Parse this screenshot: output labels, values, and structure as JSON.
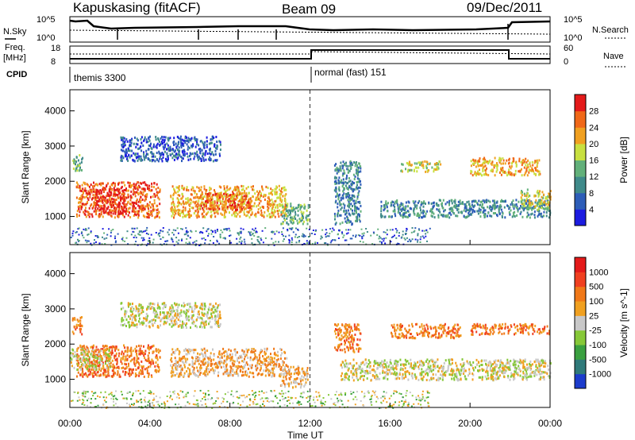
{
  "header": {
    "station": "Kapuskasing (fitACF)",
    "beam": "Beam 09",
    "date": "09/Dec/2011"
  },
  "top_panels": {
    "nsky_label": "N.Sky",
    "nsky_ticks": [
      "10^5",
      "10^0"
    ],
    "nsearch_label": "N.Search",
    "freq_label": "Freq.",
    "freq_unit": "[MHz]",
    "freq_ticks": [
      "18",
      "8"
    ],
    "nave_label": "Nave",
    "nave_ticks": [
      "60",
      "0"
    ],
    "cpid_label": "CPID",
    "cpid_segments": [
      {
        "label": "themis 3300",
        "start_hour": 0,
        "end_hour": 12
      },
      {
        "label": "normal (fast) 151",
        "start_hour": 12,
        "end_hour": 24
      }
    ]
  },
  "chart_data": [
    {
      "type": "heatmap",
      "title": "",
      "xlabel": "Time UT",
      "ylabel": "Slant Range [km]",
      "xlim": [
        0,
        24
      ],
      "ylim": [
        200,
        4600
      ],
      "x_ticks": [
        "00:00",
        "04:00",
        "08:00",
        "12:00",
        "16:00",
        "20:00",
        "00:00"
      ],
      "y_ticks": [
        "1000",
        "2000",
        "3000",
        "4000"
      ],
      "colorbar": {
        "label": "Power [dB]",
        "ticks": [
          "4",
          "8",
          "12",
          "16",
          "20",
          "24",
          "28"
        ],
        "colors": [
          "#1c1ce0",
          "#2d5db8",
          "#3f8a8a",
          "#62b07a",
          "#c8e040",
          "#f0a020",
          "#f06818",
          "#e41a1a"
        ]
      },
      "echo_regions": [
        {
          "t_start": 0.1,
          "t_end": 0.6,
          "r_start": 2300,
          "r_end": 2800,
          "level": 3
        },
        {
          "t_start": 0.3,
          "t_end": 4.5,
          "r_start": 1000,
          "r_end": 2000,
          "level": 6
        },
        {
          "t_start": 1.2,
          "t_end": 2.8,
          "r_start": 1100,
          "r_end": 1800,
          "level": 7
        },
        {
          "t_start": 2.5,
          "t_end": 7.5,
          "r_start": 2600,
          "r_end": 3300,
          "level": 1
        },
        {
          "t_start": 5.0,
          "t_end": 10.8,
          "r_start": 1000,
          "r_end": 1900,
          "level": 5
        },
        {
          "t_start": 6.5,
          "t_end": 9.0,
          "r_start": 1200,
          "r_end": 1700,
          "level": 6
        },
        {
          "t_start": 10.5,
          "t_end": 11.9,
          "r_start": 800,
          "r_end": 1400,
          "level": 3
        },
        {
          "t_start": 13.2,
          "t_end": 14.5,
          "r_start": 800,
          "r_end": 2600,
          "level": 2
        },
        {
          "t_start": 15.5,
          "t_end": 24.0,
          "r_start": 1000,
          "r_end": 1500,
          "level": 2
        },
        {
          "t_start": 16.5,
          "t_end": 18.5,
          "r_start": 2300,
          "r_end": 2600,
          "level": 4
        },
        {
          "t_start": 20.0,
          "t_end": 23.5,
          "r_start": 2200,
          "r_end": 2700,
          "level": 5
        },
        {
          "t_start": 22.5,
          "t_end": 24.0,
          "r_start": 1200,
          "r_end": 1800,
          "level": 4
        }
      ]
    },
    {
      "type": "heatmap",
      "title": "",
      "xlabel": "Time UT",
      "ylabel": "Slant Range [km]",
      "xlim": [
        0,
        24
      ],
      "ylim": [
        200,
        4600
      ],
      "x_ticks": [
        "00:00",
        "04:00",
        "08:00",
        "12:00",
        "16:00",
        "20:00",
        "00:00"
      ],
      "y_ticks": [
        "1000",
        "2000",
        "3000",
        "4000"
      ],
      "colorbar": {
        "label": "Velocity [m s^-1]",
        "ticks": [
          "1000",
          "500",
          "100",
          "25",
          "-25",
          "-100",
          "-500",
          "-1000"
        ],
        "colors": [
          "#1c3ccc",
          "#2f7a7a",
          "#3aa040",
          "#86c838",
          "#c8c8c8",
          "#f0a020",
          "#f07818",
          "#f04020",
          "#e41a1a"
        ]
      },
      "echo_regions": [
        {
          "t_start": 0.1,
          "t_end": 0.6,
          "r_start": 2300,
          "r_end": 2800,
          "level": 6
        },
        {
          "t_start": 0.3,
          "t_end": 4.5,
          "r_start": 1100,
          "r_end": 2000,
          "level": 6
        },
        {
          "t_start": 0.0,
          "t_end": 2.0,
          "r_start": 1300,
          "r_end": 1900,
          "level": 4
        },
        {
          "t_start": 2.5,
          "t_end": 7.5,
          "r_start": 2500,
          "r_end": 3200,
          "level": 4
        },
        {
          "t_start": 5.0,
          "t_end": 10.8,
          "r_start": 1100,
          "r_end": 1900,
          "level": 5
        },
        {
          "t_start": 10.5,
          "t_end": 11.9,
          "r_start": 800,
          "r_end": 1400,
          "level": 5
        },
        {
          "t_start": 13.2,
          "t_end": 14.5,
          "r_start": 1800,
          "r_end": 2600,
          "level": 6
        },
        {
          "t_start": 13.5,
          "t_end": 24.0,
          "r_start": 1000,
          "r_end": 1600,
          "level": 4
        },
        {
          "t_start": 16.0,
          "t_end": 19.5,
          "r_start": 2200,
          "r_end": 2600,
          "level": 6
        },
        {
          "t_start": 20.0,
          "t_end": 24.0,
          "r_start": 2300,
          "r_end": 2600,
          "level": 6
        }
      ]
    }
  ]
}
